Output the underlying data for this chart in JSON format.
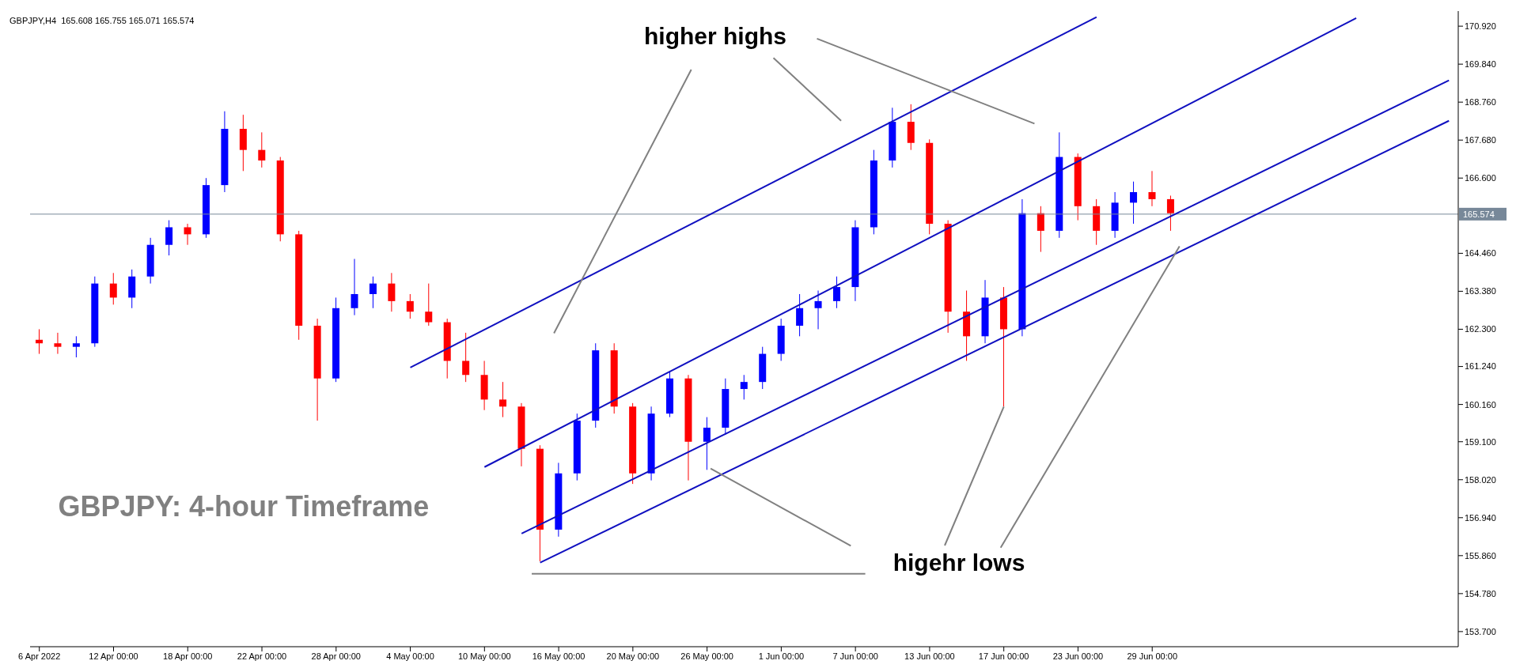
{
  "chart_data": {
    "type": "candlestick",
    "title": "GBPJPY,H4  165.608 165.755 165.071 165.574",
    "annotations": [
      "higher highs",
      {
        "text": "higehr lows",
        "x": "17 Jun 00:00",
        "y": 160.1
      },
      "GBPJPY: 4-hour Timeframe"
    ],
    "categories": [
      "6 Apr 2022",
      null,
      null,
      null,
      "12 Apr 00:00",
      null,
      null,
      null,
      "18 Apr 00:00",
      null,
      null,
      null,
      "22 Apr 00:00",
      null,
      null,
      null,
      "28 Apr 00:00",
      null,
      null,
      null,
      "4 May 00:00",
      null,
      null,
      null,
      "10 May 00:00",
      null,
      null,
      null,
      "16 May 00:00",
      null,
      null,
      null,
      "20 May 00:00",
      null,
      null,
      null,
      "26 May 00:00",
      null,
      null,
      null,
      "1 Jun 00:00",
      null,
      null,
      null,
      "7 Jun 00:00",
      null,
      null,
      null,
      "13 Jun 00:00",
      null,
      null,
      null,
      "17 Jun 00:00",
      null,
      null,
      null,
      "23 Jun 00:00",
      null,
      null,
      null,
      "29 Jun 00:00",
      null,
      null,
      null,
      null,
      null,
      null,
      null,
      null,
      null,
      null,
      null,
      null,
      null,
      null,
      null,
      null
    ],
    "ohlc": [
      [
        162.0,
        162.3,
        161.6,
        161.9
      ],
      [
        161.9,
        162.2,
        161.6,
        161.8
      ],
      [
        161.8,
        162.1,
        161.5,
        161.9
      ],
      [
        161.9,
        163.8,
        161.8,
        163.6
      ],
      [
        163.6,
        163.9,
        163.0,
        163.2
      ],
      [
        163.2,
        164.0,
        162.9,
        163.8
      ],
      [
        163.8,
        164.9,
        163.6,
        164.7
      ],
      [
        164.7,
        165.4,
        164.4,
        165.2
      ],
      [
        165.2,
        165.3,
        164.7,
        165.0
      ],
      [
        165.0,
        166.6,
        164.9,
        166.4
      ],
      [
        166.4,
        168.5,
        166.2,
        168.0
      ],
      [
        168.0,
        168.4,
        166.8,
        167.4
      ],
      [
        167.4,
        167.9,
        166.9,
        167.1
      ],
      [
        167.1,
        167.2,
        164.8,
        165.0
      ],
      [
        165.0,
        165.1,
        162.0,
        162.4
      ],
      [
        162.4,
        162.6,
        159.7,
        160.9
      ],
      [
        160.9,
        163.2,
        160.8,
        162.9
      ],
      [
        162.9,
        164.3,
        162.7,
        163.3
      ],
      [
        163.3,
        163.8,
        162.9,
        163.6
      ],
      [
        163.6,
        163.9,
        162.8,
        163.1
      ],
      [
        163.1,
        163.3,
        162.6,
        162.8
      ],
      [
        162.8,
        163.6,
        162.4,
        162.5
      ],
      [
        162.5,
        162.6,
        160.9,
        161.4
      ],
      [
        161.4,
        162.2,
        160.8,
        161.0
      ],
      [
        161.0,
        161.4,
        160.0,
        160.3
      ],
      [
        160.3,
        160.8,
        159.8,
        160.1
      ],
      [
        160.1,
        160.2,
        158.4,
        158.9
      ],
      [
        158.9,
        159.0,
        155.7,
        156.6
      ],
      [
        156.6,
        158.5,
        156.4,
        158.2
      ],
      [
        158.2,
        159.9,
        158.0,
        159.7
      ],
      [
        159.7,
        161.9,
        159.5,
        161.7
      ],
      [
        161.7,
        161.9,
        159.9,
        160.1
      ],
      [
        160.1,
        160.2,
        157.9,
        158.2
      ],
      [
        158.2,
        160.1,
        158.0,
        159.9
      ],
      [
        159.9,
        161.1,
        159.8,
        160.9
      ],
      [
        160.9,
        161.0,
        158.0,
        159.1
      ],
      [
        159.1,
        159.8,
        158.3,
        159.5
      ],
      [
        159.5,
        160.9,
        159.3,
        160.6
      ],
      [
        160.6,
        161.0,
        160.3,
        160.8
      ],
      [
        160.8,
        161.8,
        160.6,
        161.6
      ],
      [
        161.6,
        162.6,
        161.4,
        162.4
      ],
      [
        162.4,
        163.3,
        162.1,
        162.9
      ],
      [
        162.9,
        163.4,
        162.3,
        163.1
      ],
      [
        163.1,
        163.8,
        162.9,
        163.5
      ],
      [
        163.5,
        165.4,
        163.1,
        165.2
      ],
      [
        165.2,
        167.4,
        165.0,
        167.1
      ],
      [
        167.1,
        168.6,
        166.9,
        168.2
      ],
      [
        168.2,
        168.7,
        167.4,
        167.6
      ],
      [
        167.6,
        167.7,
        165.0,
        165.3
      ],
      [
        165.3,
        165.4,
        162.2,
        162.8
      ],
      [
        162.8,
        163.4,
        161.4,
        162.1
      ],
      [
        162.1,
        163.7,
        161.9,
        163.2
      ],
      [
        163.2,
        163.5,
        160.1,
        162.3
      ],
      [
        162.3,
        166.0,
        162.1,
        165.6
      ],
      [
        165.6,
        165.8,
        164.5,
        165.1
      ],
      [
        165.1,
        167.9,
        164.9,
        167.2
      ],
      [
        167.2,
        167.3,
        165.4,
        165.8
      ],
      [
        165.8,
        166.0,
        164.7,
        165.1
      ],
      [
        165.1,
        166.2,
        164.9,
        165.9
      ],
      [
        165.9,
        166.5,
        165.3,
        166.2
      ],
      [
        166.2,
        166.8,
        165.8,
        166.0
      ],
      [
        166.0,
        166.1,
        165.1,
        165.6
      ],
      null,
      null,
      null,
      null,
      null,
      null,
      null,
      null,
      null,
      null,
      null,
      null,
      null,
      null,
      null
    ],
    "colors": [
      "#ff0000",
      "#ff0000",
      "#0000ff",
      "#0000ff",
      "#ff0000",
      "#0000ff",
      "#0000ff",
      "#0000ff",
      "#ff0000",
      "#0000ff",
      "#0000ff",
      "#ff0000",
      "#ff0000",
      "#ff0000",
      "#ff0000",
      "#ff0000",
      "#0000ff",
      "#0000ff",
      "#0000ff",
      "#ff0000",
      "#ff0000",
      "#ff0000",
      "#ff0000",
      "#ff0000",
      "#ff0000",
      "#ff0000",
      "#ff0000",
      "#ff0000",
      "#0000ff",
      "#0000ff",
      "#0000ff",
      "#ff0000",
      "#ff0000",
      "#0000ff",
      "#0000ff",
      "#ff0000",
      "#0000ff",
      "#0000ff",
      "#0000ff",
      "#0000ff",
      "#0000ff",
      "#0000ff",
      "#0000ff",
      "#0000ff",
      "#0000ff",
      "#0000ff",
      "#0000ff",
      "#ff0000",
      "#ff0000",
      "#ff0000",
      "#ff0000",
      "#0000ff",
      "#ff0000",
      "#0000ff",
      "#ff0000",
      "#0000ff",
      "#ff0000",
      "#ff0000",
      "#0000ff",
      "#0000ff",
      "#ff0000",
      "#ff0000",
      null,
      null,
      null,
      null,
      null,
      null,
      null,
      null,
      null,
      null,
      null,
      null,
      null,
      null,
      null
    ],
    "series": [
      {
        "type": "line",
        "color": "#1010c0",
        "values": [
          null,
          null,
          null,
          null,
          null,
          null,
          null,
          null,
          null,
          null,
          null,
          null,
          null,
          null,
          null,
          null,
          null,
          null,
          null,
          null,
          161.21,
          null,
          null,
          null,
          null,
          null,
          null,
          null,
          null,
          null,
          null,
          null,
          null,
          null,
          null,
          null,
          null,
          null,
          null,
          null,
          null,
          null,
          null,
          null,
          null,
          null,
          null,
          null,
          null,
          null,
          null,
          null,
          null,
          null,
          null,
          null,
          null,
          171.18,
          null,
          null,
          null,
          null,
          null,
          null,
          null,
          null,
          null,
          null,
          null,
          null,
          null,
          null,
          null,
          null,
          null,
          null,
          null
        ]
      },
      {
        "type": "line",
        "color": "#1010c0",
        "values": [
          null,
          null,
          null,
          null,
          null,
          null,
          null,
          null,
          null,
          null,
          null,
          null,
          null,
          null,
          null,
          null,
          null,
          null,
          null,
          null,
          null,
          null,
          null,
          null,
          158.38,
          null,
          null,
          null,
          null,
          null,
          null,
          null,
          null,
          null,
          null,
          null,
          null,
          null,
          null,
          null,
          null,
          null,
          null,
          null,
          null,
          null,
          null,
          null,
          null,
          null,
          null,
          null,
          null,
          null,
          null,
          null,
          null,
          null,
          null,
          null,
          null,
          null,
          null,
          null,
          null,
          null,
          null,
          null,
          null,
          null,
          null,
          171.15,
          null,
          null,
          null,
          null,
          null
        ]
      },
      {
        "type": "line",
        "color": "#1010c0",
        "values": [
          null,
          null,
          null,
          null,
          null,
          null,
          null,
          null,
          null,
          null,
          null,
          null,
          null,
          null,
          null,
          null,
          null,
          null,
          null,
          null,
          null,
          null,
          null,
          null,
          null,
          null,
          156.49,
          null,
          null,
          null,
          null,
          null,
          null,
          null,
          null,
          null,
          null,
          null,
          null,
          null,
          null,
          null,
          null,
          null,
          null,
          null,
          null,
          null,
          null,
          null,
          null,
          null,
          null,
          null,
          null,
          null,
          null,
          null,
          null,
          null,
          null,
          null,
          null,
          null,
          null,
          null,
          null,
          null,
          null,
          null,
          null,
          null,
          null,
          null,
          null,
          null,
          169.38
        ]
      },
      {
        "type": "line",
        "color": "#1010c0",
        "values": [
          null,
          null,
          null,
          null,
          null,
          null,
          null,
          null,
          null,
          null,
          null,
          null,
          null,
          null,
          null,
          null,
          null,
          null,
          null,
          null,
          null,
          null,
          null,
          null,
          null,
          null,
          null,
          155.66,
          null,
          null,
          null,
          null,
          null,
          null,
          null,
          null,
          null,
          null,
          null,
          null,
          null,
          null,
          null,
          null,
          null,
          null,
          null,
          null,
          null,
          null,
          null,
          null,
          null,
          null,
          null,
          null,
          null,
          null,
          null,
          null,
          null,
          null,
          null,
          null,
          null,
          null,
          null,
          null,
          null,
          null,
          null,
          null,
          null,
          null,
          null,
          null,
          168.23
        ]
      }
    ],
    "ref_lines": [
      {
        "axis": "y",
        "value": 165.574,
        "label": "165.574",
        "color": "#778899"
      }
    ],
    "ylim": [
      153.27,
      171.35
    ],
    "yticks": [
      {
        "value": 153.7,
        "label": "153.700"
      },
      {
        "value": 154.78,
        "label": "154.780"
      },
      {
        "value": 155.86,
        "label": "155.860"
      },
      {
        "value": 156.94,
        "label": "156.940"
      },
      {
        "value": 158.02,
        "label": "158.020"
      },
      {
        "value": 159.1,
        "label": "159.100"
      },
      {
        "value": 160.16,
        "label": "160.160"
      },
      {
        "value": 161.24,
        "label": "161.240"
      },
      {
        "value": 162.3,
        "label": "162.300"
      },
      {
        "value": 163.38,
        "label": "163.380"
      },
      {
        "value": 164.46,
        "label": "164.460"
      },
      {
        "value": 166.6,
        "label": "166.600"
      },
      {
        "value": 167.68,
        "label": "167.680"
      },
      {
        "value": 168.76,
        "label": "168.760"
      },
      {
        "value": 169.84,
        "label": "169.840"
      },
      {
        "value": 170.92,
        "label": "170.920"
      }
    ]
  }
}
